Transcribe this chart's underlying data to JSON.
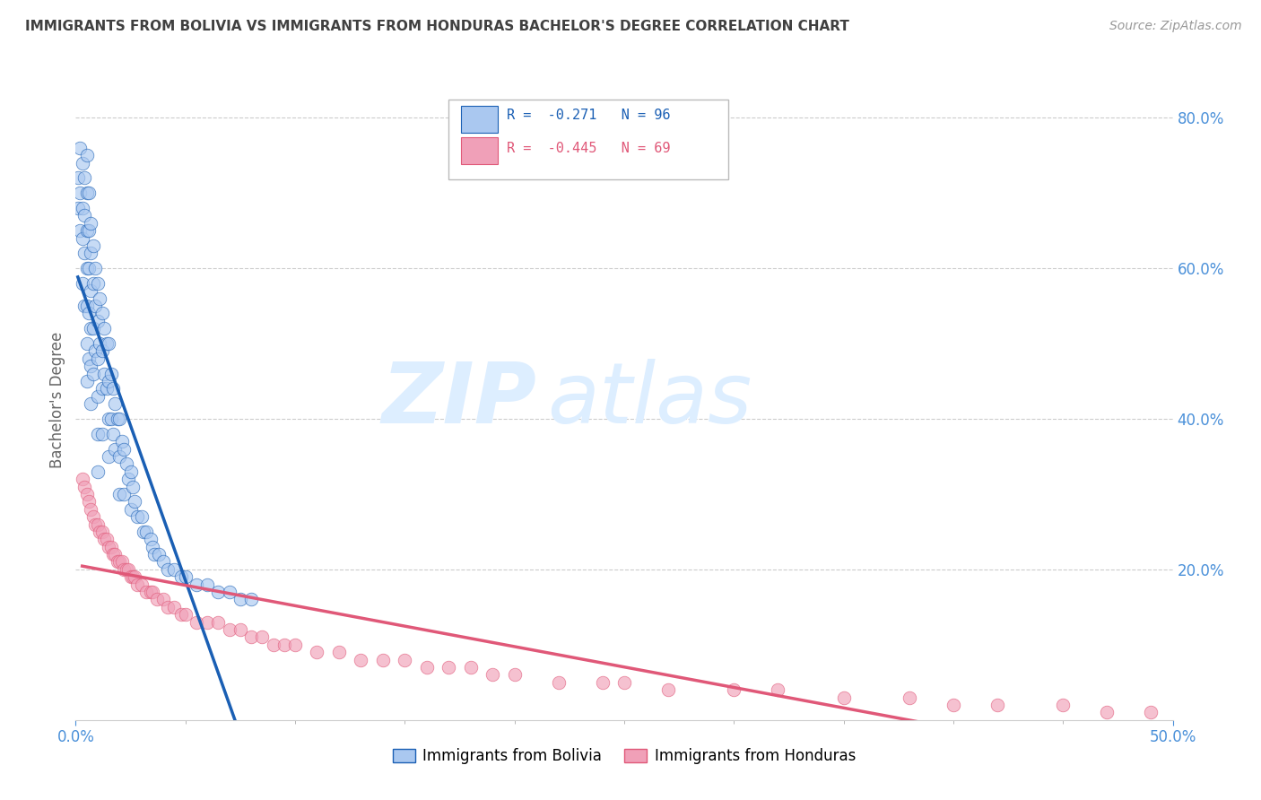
{
  "title": "IMMIGRANTS FROM BOLIVIA VS IMMIGRANTS FROM HONDURAS BACHELOR'S DEGREE CORRELATION CHART",
  "source": "Source: ZipAtlas.com",
  "ylabel": "Bachelor's Degree",
  "legend_1_label": "Immigrants from Bolivia",
  "legend_2_label": "Immigrants from Honduras",
  "r1": "-0.271",
  "n1": "96",
  "r2": "-0.445",
  "n2": "69",
  "color_bolivia": "#aac8f0",
  "color_honduras": "#f0a0b8",
  "line_color_bolivia": "#1a5fb4",
  "line_color_honduras": "#e05878",
  "title_color": "#404040",
  "axis_color": "#4a90d9",
  "background_color": "#ffffff",
  "grid_color": "#cccccc",
  "xlim": [
    0.0,
    0.5
  ],
  "ylim": [
    0.0,
    0.85
  ],
  "xtick_left": 0.0,
  "xtick_right": 0.5,
  "xtick_left_label": "0.0%",
  "xtick_right_label": "50.0%",
  "yticks_right": [
    0.2,
    0.4,
    0.6,
    0.8
  ],
  "ytick_right_labels": [
    "20.0%",
    "40.0%",
    "60.0%",
    "80.0%"
  ],
  "bolivia_x": [
    0.001,
    0.001,
    0.002,
    0.002,
    0.002,
    0.003,
    0.003,
    0.003,
    0.003,
    0.004,
    0.004,
    0.004,
    0.004,
    0.005,
    0.005,
    0.005,
    0.005,
    0.005,
    0.005,
    0.005,
    0.006,
    0.006,
    0.006,
    0.006,
    0.006,
    0.007,
    0.007,
    0.007,
    0.007,
    0.007,
    0.007,
    0.008,
    0.008,
    0.008,
    0.008,
    0.009,
    0.009,
    0.009,
    0.01,
    0.01,
    0.01,
    0.01,
    0.01,
    0.01,
    0.011,
    0.011,
    0.012,
    0.012,
    0.012,
    0.012,
    0.013,
    0.013,
    0.014,
    0.014,
    0.015,
    0.015,
    0.015,
    0.015,
    0.016,
    0.016,
    0.017,
    0.017,
    0.018,
    0.018,
    0.019,
    0.02,
    0.02,
    0.02,
    0.021,
    0.022,
    0.022,
    0.023,
    0.024,
    0.025,
    0.025,
    0.026,
    0.027,
    0.028,
    0.03,
    0.031,
    0.032,
    0.034,
    0.035,
    0.036,
    0.038,
    0.04,
    0.042,
    0.045,
    0.048,
    0.05,
    0.055,
    0.06,
    0.065,
    0.07,
    0.075,
    0.08
  ],
  "bolivia_y": [
    0.72,
    0.68,
    0.76,
    0.7,
    0.65,
    0.74,
    0.68,
    0.64,
    0.58,
    0.72,
    0.67,
    0.62,
    0.55,
    0.75,
    0.7,
    0.65,
    0.6,
    0.55,
    0.5,
    0.45,
    0.7,
    0.65,
    0.6,
    0.54,
    0.48,
    0.66,
    0.62,
    0.57,
    0.52,
    0.47,
    0.42,
    0.63,
    0.58,
    0.52,
    0.46,
    0.6,
    0.55,
    0.49,
    0.58,
    0.53,
    0.48,
    0.43,
    0.38,
    0.33,
    0.56,
    0.5,
    0.54,
    0.49,
    0.44,
    0.38,
    0.52,
    0.46,
    0.5,
    0.44,
    0.5,
    0.45,
    0.4,
    0.35,
    0.46,
    0.4,
    0.44,
    0.38,
    0.42,
    0.36,
    0.4,
    0.4,
    0.35,
    0.3,
    0.37,
    0.36,
    0.3,
    0.34,
    0.32,
    0.33,
    0.28,
    0.31,
    0.29,
    0.27,
    0.27,
    0.25,
    0.25,
    0.24,
    0.23,
    0.22,
    0.22,
    0.21,
    0.2,
    0.2,
    0.19,
    0.19,
    0.18,
    0.18,
    0.17,
    0.17,
    0.16,
    0.16
  ],
  "honduras_x": [
    0.003,
    0.004,
    0.005,
    0.006,
    0.007,
    0.008,
    0.009,
    0.01,
    0.011,
    0.012,
    0.013,
    0.014,
    0.015,
    0.016,
    0.017,
    0.018,
    0.019,
    0.02,
    0.021,
    0.022,
    0.023,
    0.024,
    0.025,
    0.026,
    0.027,
    0.028,
    0.03,
    0.032,
    0.034,
    0.035,
    0.037,
    0.04,
    0.042,
    0.045,
    0.048,
    0.05,
    0.055,
    0.06,
    0.065,
    0.07,
    0.075,
    0.08,
    0.085,
    0.09,
    0.095,
    0.1,
    0.11,
    0.12,
    0.13,
    0.14,
    0.15,
    0.16,
    0.17,
    0.18,
    0.19,
    0.2,
    0.22,
    0.24,
    0.25,
    0.27,
    0.3,
    0.32,
    0.35,
    0.38,
    0.4,
    0.42,
    0.45,
    0.47,
    0.49
  ],
  "honduras_y": [
    0.32,
    0.31,
    0.3,
    0.29,
    0.28,
    0.27,
    0.26,
    0.26,
    0.25,
    0.25,
    0.24,
    0.24,
    0.23,
    0.23,
    0.22,
    0.22,
    0.21,
    0.21,
    0.21,
    0.2,
    0.2,
    0.2,
    0.19,
    0.19,
    0.19,
    0.18,
    0.18,
    0.17,
    0.17,
    0.17,
    0.16,
    0.16,
    0.15,
    0.15,
    0.14,
    0.14,
    0.13,
    0.13,
    0.13,
    0.12,
    0.12,
    0.11,
    0.11,
    0.1,
    0.1,
    0.1,
    0.09,
    0.09,
    0.08,
    0.08,
    0.08,
    0.07,
    0.07,
    0.07,
    0.06,
    0.06,
    0.05,
    0.05,
    0.05,
    0.04,
    0.04,
    0.04,
    0.03,
    0.03,
    0.02,
    0.02,
    0.02,
    0.01,
    0.01
  ],
  "watermark_zip": "ZIP",
  "watermark_atlas": "atlas",
  "watermark_color": "#ddeeff"
}
